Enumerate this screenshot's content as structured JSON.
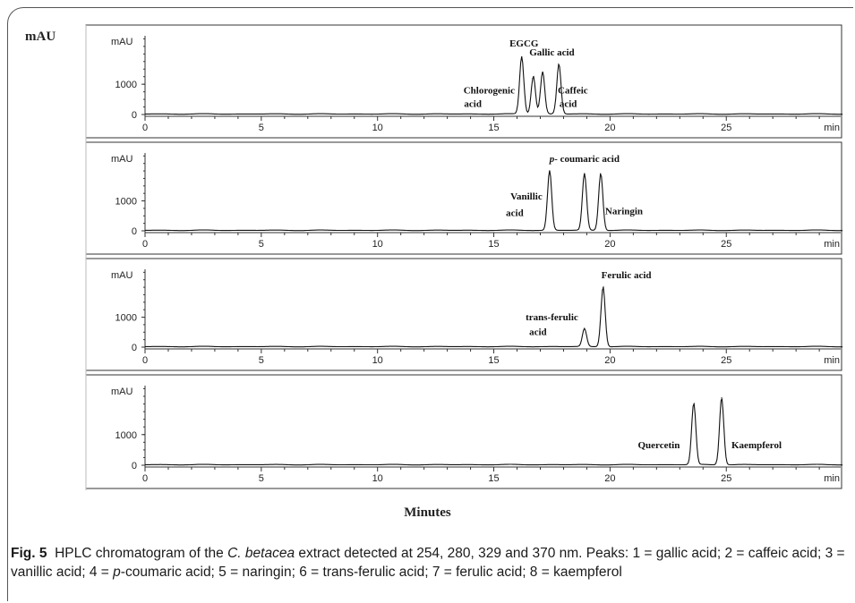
{
  "figure": {
    "y_axis_label": "mAU",
    "x_axis_label": "Minutes",
    "caption_label": "Fig. 5",
    "caption_text_1": "HPLC chromatogram of the ",
    "caption_species": "C. betacea",
    "caption_text_2": " extract detected at 254, 280, 329 and 370 nm. Peaks: 1 = gallic acid; 2 = caffeic acid; 3 = vanillic acid; 4 = ",
    "caption_pcoumaric": "p",
    "caption_text_3": "-coumaric acid; 5 = naringin; 6 = trans-ferulic acid; 7 = ferulic acid; 8 = kaempferol"
  },
  "chart_data": [
    {
      "type": "line",
      "panel": 1,
      "ylabel": "mAU",
      "xlabel": "min",
      "xlim": [
        0,
        30
      ],
      "xticks": [
        0,
        5,
        10,
        15,
        20,
        25
      ],
      "yticks": [
        0,
        1000
      ],
      "peaks": [
        {
          "x": 16.2,
          "y": 1900,
          "label": "EGCG"
        },
        {
          "x": 16.7,
          "y": 1250
        },
        {
          "x": 17.1,
          "y": 1400
        },
        {
          "x": 17.8,
          "y": 1650,
          "label": "Gallic acid"
        }
      ],
      "labels": [
        {
          "text": "EGCG",
          "x": 16.3,
          "y": 2250
        },
        {
          "text": "Gallic acid",
          "x": 17.5,
          "y": 1950
        },
        {
          "text": "Chlorogenic",
          "x": 14.8,
          "y": 700
        },
        {
          "text": "acid",
          "x": 14.1,
          "y": 250
        },
        {
          "text": "Caffeic",
          "x": 18.4,
          "y": 700
        },
        {
          "text": "acid",
          "x": 18.2,
          "y": 250
        }
      ]
    },
    {
      "type": "line",
      "panel": 2,
      "ylabel": "mAU",
      "xlabel": "min",
      "xlim": [
        0,
        30
      ],
      "xticks": [
        0,
        5,
        10,
        15,
        20,
        25
      ],
      "yticks": [
        0,
        1000
      ],
      "peaks": [
        {
          "x": 17.4,
          "y": 2000
        },
        {
          "x": 18.9,
          "y": 1900
        },
        {
          "x": 19.6,
          "y": 1900
        }
      ],
      "labels": [
        {
          "text": "p- coumaric acid",
          "x": 18.9,
          "y": 2300
        },
        {
          "text": "Vanillic",
          "x": 16.4,
          "y": 1050
        },
        {
          "text": "acid",
          "x": 15.9,
          "y": 500
        },
        {
          "text": "Naringin",
          "x": 20.6,
          "y": 550
        }
      ]
    },
    {
      "type": "line",
      "panel": 3,
      "ylabel": "mAU",
      "xlabel": "min",
      "xlim": [
        0,
        30
      ],
      "xticks": [
        0,
        5,
        10,
        15,
        20,
        25
      ],
      "yticks": [
        0,
        1000
      ],
      "peaks": [
        {
          "x": 18.9,
          "y": 600
        },
        {
          "x": 19.7,
          "y": 2000
        }
      ],
      "labels": [
        {
          "text": "Ferulic acid",
          "x": 20.7,
          "y": 2300
        },
        {
          "text": "trans-ferulic",
          "x": 17.5,
          "y": 900
        },
        {
          "text": "acid",
          "x": 16.9,
          "y": 400
        }
      ]
    },
    {
      "type": "line",
      "panel": 4,
      "ylabel": "mAU",
      "xlabel": "min",
      "xlim": [
        0,
        30
      ],
      "xticks": [
        0,
        5,
        10,
        15,
        20,
        25
      ],
      "yticks": [
        0,
        1000
      ],
      "peaks": [
        {
          "x": 23.6,
          "y": 2000
        },
        {
          "x": 24.8,
          "y": 2200
        }
      ],
      "labels": [
        {
          "text": "Quercetin",
          "x": 22.1,
          "y": 550
        },
        {
          "text": "Kaempferol",
          "x": 26.3,
          "y": 550
        }
      ]
    }
  ]
}
